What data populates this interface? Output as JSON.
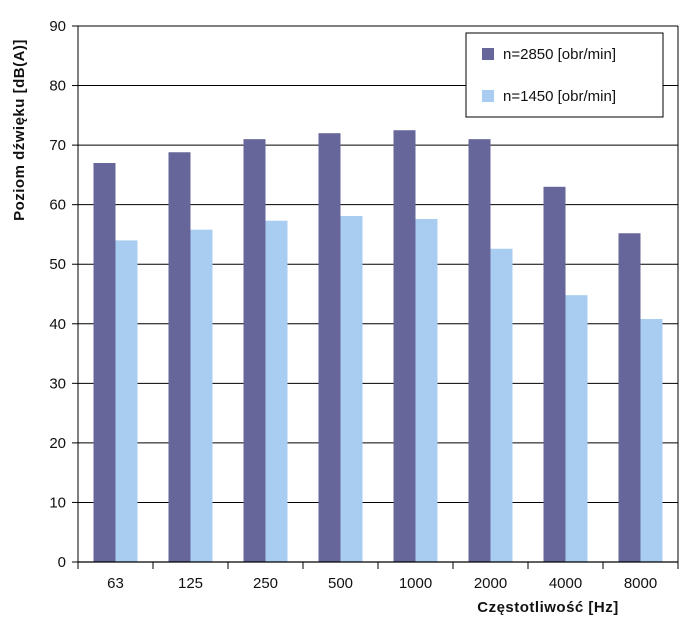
{
  "chart_data": {
    "type": "bar",
    "xlabel": "Częstotliwość [Hz]",
    "ylabel": "Poziom dźwięku [dB(A)]",
    "categories": [
      "63",
      "125",
      "250",
      "500",
      "1000",
      "2000",
      "4000",
      "8000"
    ],
    "ylim": [
      0,
      90
    ],
    "yticks": [
      0,
      10,
      20,
      30,
      40,
      50,
      60,
      70,
      80,
      90
    ],
    "grid": true,
    "legend_position": "top-right",
    "series": [
      {
        "name": "n=2850 [obr/min]",
        "color": "#66669a",
        "values": [
          67,
          68.8,
          71,
          72,
          72.5,
          71,
          63,
          55.2
        ]
      },
      {
        "name": "n=1450 [obr/min]",
        "color": "#a9cdf0",
        "values": [
          54,
          55.8,
          57.3,
          58.1,
          57.6,
          52.6,
          44.8,
          40.8
        ]
      }
    ]
  }
}
